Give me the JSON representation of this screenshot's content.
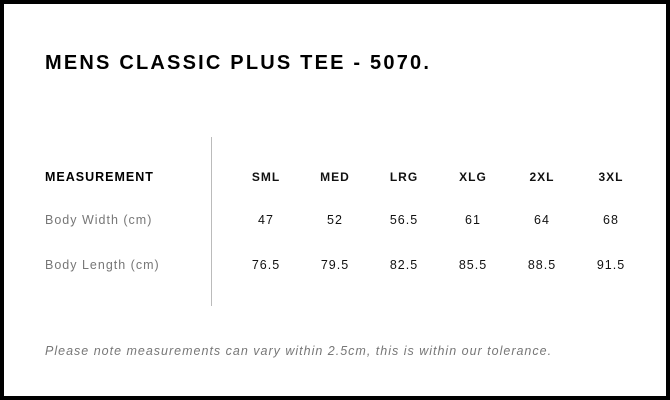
{
  "title": "MENS CLASSIC PLUS TEE - 5070.",
  "table": {
    "header_label": "MEASUREMENT",
    "sizes": [
      "SML",
      "MED",
      "LRG",
      "XLG",
      "2XL",
      "3XL"
    ],
    "rows": [
      {
        "label": "Body Width (cm)",
        "values": [
          "47",
          "52",
          "56.5",
          "61",
          "64",
          "68"
        ]
      },
      {
        "label": "Body Length (cm)",
        "values": [
          "76.5",
          "79.5",
          "82.5",
          "85.5",
          "88.5",
          "91.5"
        ]
      }
    ]
  },
  "note": "Please note measurements can vary within 2.5cm, this is within our tolerance."
}
